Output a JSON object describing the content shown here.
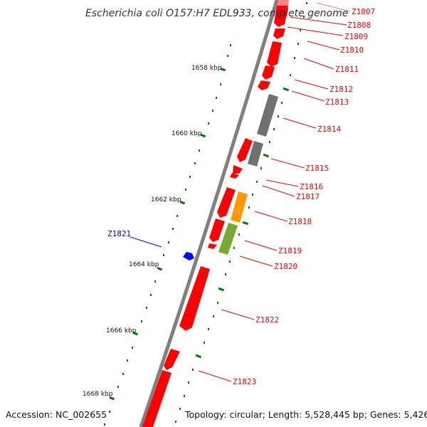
{
  "title": "Escherichia coli O157:H7 EDL933, complete genome",
  "footer": {
    "accession": "Accession: NC_002655",
    "summary": "Topology: circular; Length: 5,528,445 bp; Genes: 5,426"
  },
  "colors": {
    "backbone": "#808080",
    "gene_red": "#ff0000",
    "gene_gray": "#707070",
    "gene_orange": "#ff9900",
    "gene_olive": "#77aa33",
    "gene_blue": "#0000ff",
    "tick_green": "#007700"
  },
  "kbp_labels": [
    {
      "id": "1658",
      "text": "1658 kbp"
    },
    {
      "id": "1660",
      "text": "1660 kbp"
    },
    {
      "id": "1662",
      "text": "1662 kbp"
    },
    {
      "id": "1664",
      "text": "1664 kbp"
    },
    {
      "id": "1666",
      "text": "1666 kbp"
    },
    {
      "id": "1668",
      "text": "1668 kbp"
    }
  ],
  "genes": [
    {
      "id": "z1807",
      "label": "Z1807",
      "strand": "plus",
      "color": "red"
    },
    {
      "id": "z1808",
      "label": "Z1808",
      "strand": "plus",
      "color": "red"
    },
    {
      "id": "z1809",
      "label": "Z1809",
      "strand": "plus",
      "color": "red"
    },
    {
      "id": "z1810",
      "label": "Z1810",
      "strand": "plus",
      "color": "red"
    },
    {
      "id": "z1811",
      "label": "Z1811",
      "strand": "plus",
      "color": "red"
    },
    {
      "id": "z1812",
      "label": "Z1812",
      "strand": "plus",
      "color": "red"
    },
    {
      "id": "z1813",
      "label": "Z1813",
      "strand": "plus",
      "color": "gray"
    },
    {
      "id": "z1814",
      "label": "Z1814",
      "strand": "plus",
      "color": "red"
    },
    {
      "id": "z1815",
      "label": "Z1815",
      "strand": "plus",
      "color": "gray"
    },
    {
      "id": "z1816",
      "label": "Z1816",
      "strand": "plus",
      "color": "red"
    },
    {
      "id": "z1817",
      "label": "Z1817",
      "strand": "plus",
      "color": "orange"
    },
    {
      "id": "z1818",
      "label": "Z1818",
      "strand": "plus",
      "color": "red"
    },
    {
      "id": "z1819",
      "label": "Z1819",
      "strand": "plus",
      "color": "olive"
    },
    {
      "id": "z1820",
      "label": "Z1820",
      "strand": "plus",
      "color": "red"
    },
    {
      "id": "z1821",
      "label": "Z1821",
      "strand": "minus",
      "color": "blue"
    },
    {
      "id": "z1822",
      "label": "Z1822",
      "strand": "plus",
      "color": "red"
    },
    {
      "id": "z1823",
      "label": "Z1823",
      "strand": "plus",
      "color": "red"
    }
  ]
}
